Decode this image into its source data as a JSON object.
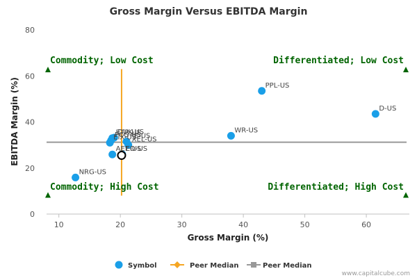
{
  "chart_data": {
    "type": "scatter",
    "title": "Gross Margin Versus EBITDA Margin",
    "xlabel": "Gross Margin (%)",
    "ylabel": "EBITDA Margin (%)",
    "xlim": [
      8,
      67
    ],
    "ylim": [
      0,
      80
    ],
    "x_ticks": [
      10,
      20,
      30,
      40,
      50,
      60
    ],
    "y_ticks": [
      0,
      20,
      40,
      60,
      80
    ],
    "grid": false,
    "points": [
      {
        "label": "NRG-US",
        "x": 12.7,
        "y": 15.9
      },
      {
        "label": "PPL-US",
        "x": 43.0,
        "y": 53.5
      },
      {
        "label": "D-US",
        "x": 61.5,
        "y": 43.5
      },
      {
        "label": "WR-US",
        "x": 38.0,
        "y": 34.0
      },
      {
        "label": "ETR-US",
        "x": 18.7,
        "y": 33.0
      },
      {
        "label": "EIX-US",
        "x": 18.3,
        "y": 31.0
      },
      {
        "label": "PCG-US",
        "x": 18.5,
        "y": 32.0
      },
      {
        "label": "DUK-US",
        "x": 19.0,
        "y": 33.2
      },
      {
        "label": "FE-US",
        "x": 21.0,
        "y": 31.5
      },
      {
        "label": "XEL-US",
        "x": 21.3,
        "y": 30.0
      },
      {
        "label": "AEE-US",
        "x": 18.7,
        "y": 25.9
      },
      {
        "label": "ED-US",
        "x": 20.3,
        "y": 26.0
      }
    ],
    "highlight": {
      "x": 20.2,
      "y": 25.5
    },
    "peer_median_x": 20.2,
    "peer_median_y": 31.2,
    "marker_labels": [
      {
        "label": "ETR-US",
        "x": 18.7,
        "y": 33.0
      },
      {
        "label": "EIX-US",
        "x": 18.3,
        "y": 31.0
      },
      {
        "label": "PCG-US",
        "x": 18.5,
        "y": 32.0
      },
      {
        "label": "DUK-US",
        "x": 19.0,
        "y": 33.2
      },
      {
        "label": "FE-US",
        "x": 21.0,
        "y": 31.5
      },
      {
        "label": "XEL-US",
        "x": 21.3,
        "y": 30.0
      },
      {
        "label": "AEE-US",
        "x": 18.7,
        "y": 25.9
      },
      {
        "label": "ED-US",
        "x": 20.3,
        "y": 26.0
      }
    ],
    "quadrants": {
      "top_left": "Commodity; Low Cost",
      "top_right": "Differentiated; Low Cost",
      "bottom_left": "Commodity; High Cost",
      "bottom_right": "Differentiated; High Cost"
    },
    "legend": [
      {
        "name": "Symbol",
        "marker": "circle",
        "color": "#1a9fe8"
      },
      {
        "name": "Peer Median",
        "marker": "diamond-line",
        "color": "#f5a623"
      },
      {
        "name": "Peer Median",
        "marker": "square-line",
        "color": "#999999"
      }
    ],
    "colors": {
      "point": "#1a9fe8",
      "vertical_median": "#f5a623",
      "horizontal_median": "#999999",
      "quadrant_text": "#006400",
      "highlight_stroke": "#000000"
    }
  },
  "credit": "www.capitalcube.com"
}
